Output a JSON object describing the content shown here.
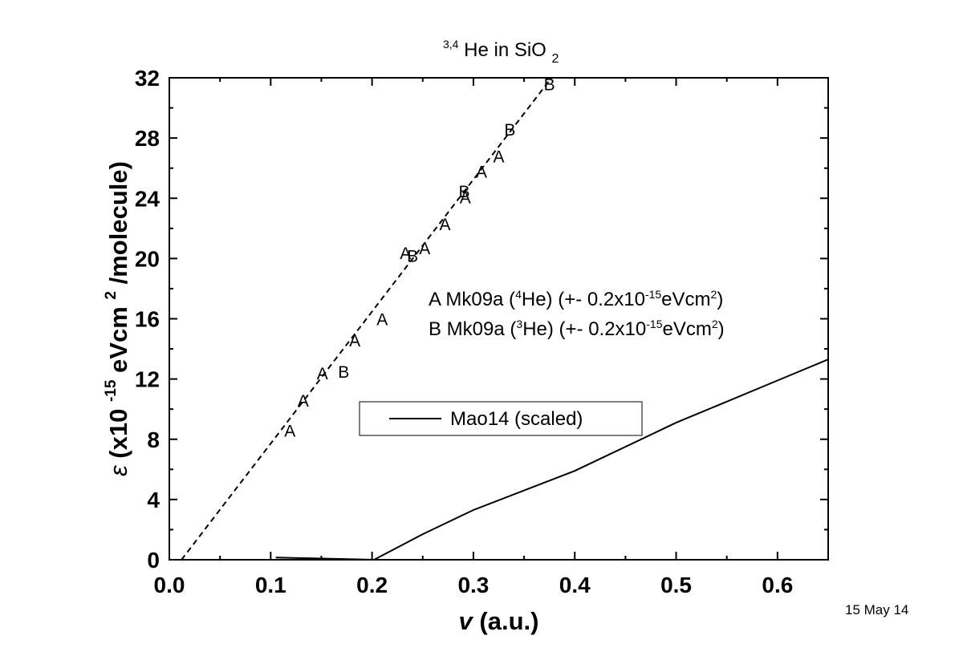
{
  "chart_data": {
    "type": "scatter",
    "title": {
      "prefix_sup": "3,4",
      "main": "He in SiO",
      "sub": "2"
    },
    "xlabel": {
      "symbol": "v",
      "text": " (a.u.)"
    },
    "ylabel": {
      "symbol": "ε",
      "part1": " (x10",
      "exp1": "-15",
      "part2": " eVcm",
      "exp2": "2",
      "part3": "/molecule)"
    },
    "xlim": [
      0.0,
      0.65
    ],
    "ylim": [
      0,
      32
    ],
    "x_ticks": [
      "0.0",
      "0.1",
      "0.2",
      "0.3",
      "0.4",
      "0.5",
      "0.6"
    ],
    "y_ticks": [
      "0",
      "4",
      "8",
      "12",
      "16",
      "20",
      "24",
      "28",
      "32"
    ],
    "grid": false,
    "series": [
      {
        "name": "Mk09a (4He)",
        "marker": "A",
        "points": [
          {
            "x": 0.119,
            "y": 8.6
          },
          {
            "x": 0.132,
            "y": 10.6
          },
          {
            "x": 0.151,
            "y": 12.4
          },
          {
            "x": 0.183,
            "y": 14.6
          },
          {
            "x": 0.21,
            "y": 16.0
          },
          {
            "x": 0.233,
            "y": 20.4
          },
          {
            "x": 0.252,
            "y": 20.7
          },
          {
            "x": 0.272,
            "y": 22.3
          },
          {
            "x": 0.292,
            "y": 24.1
          },
          {
            "x": 0.308,
            "y": 25.8
          },
          {
            "x": 0.325,
            "y": 26.8
          }
        ]
      },
      {
        "name": "Mk09a (3He)",
        "marker": "B",
        "points": [
          {
            "x": 0.172,
            "y": 12.5
          },
          {
            "x": 0.24,
            "y": 20.2
          },
          {
            "x": 0.291,
            "y": 24.5
          },
          {
            "x": 0.336,
            "y": 28.6
          },
          {
            "x": 0.375,
            "y": 31.6
          }
        ]
      },
      {
        "name": "Mao14 (scaled)",
        "style": "solid",
        "points": [
          {
            "x": 0.105,
            "y": 0.15
          },
          {
            "x": 0.15,
            "y": 0.08
          },
          {
            "x": 0.202,
            "y": 0.0
          },
          {
            "x": 0.25,
            "y": 1.7
          },
          {
            "x": 0.3,
            "y": 3.3
          },
          {
            "x": 0.35,
            "y": 4.6
          },
          {
            "x": 0.4,
            "y": 5.9
          },
          {
            "x": 0.45,
            "y": 7.5
          },
          {
            "x": 0.5,
            "y": 9.1
          },
          {
            "x": 0.55,
            "y": 10.5
          },
          {
            "x": 0.6,
            "y": 11.9
          },
          {
            "x": 0.65,
            "y": 13.3
          }
        ]
      },
      {
        "style": "dashed",
        "points": [
          {
            "x": 0.012,
            "y": 0.0
          },
          {
            "x": 0.377,
            "y": 32.0
          }
        ]
      }
    ],
    "legend_lines": [
      {
        "marker": "A",
        "text1": " Mk09a (",
        "sup": "4",
        "text2": "He) (+- 0.2x10",
        "sup2": "-15",
        "text3": "eVcm",
        "sup3": "2",
        "text4": ")"
      },
      {
        "marker": "B",
        "text1": " Mk09a (",
        "sup": "3",
        "text2": "He) (+- 0.2x10",
        "sup2": "-15",
        "text3": "eVcm",
        "sup3": "2",
        "text4": ")"
      }
    ],
    "legend_box_label": "Mao14 (scaled)",
    "date": "15 May 14"
  }
}
